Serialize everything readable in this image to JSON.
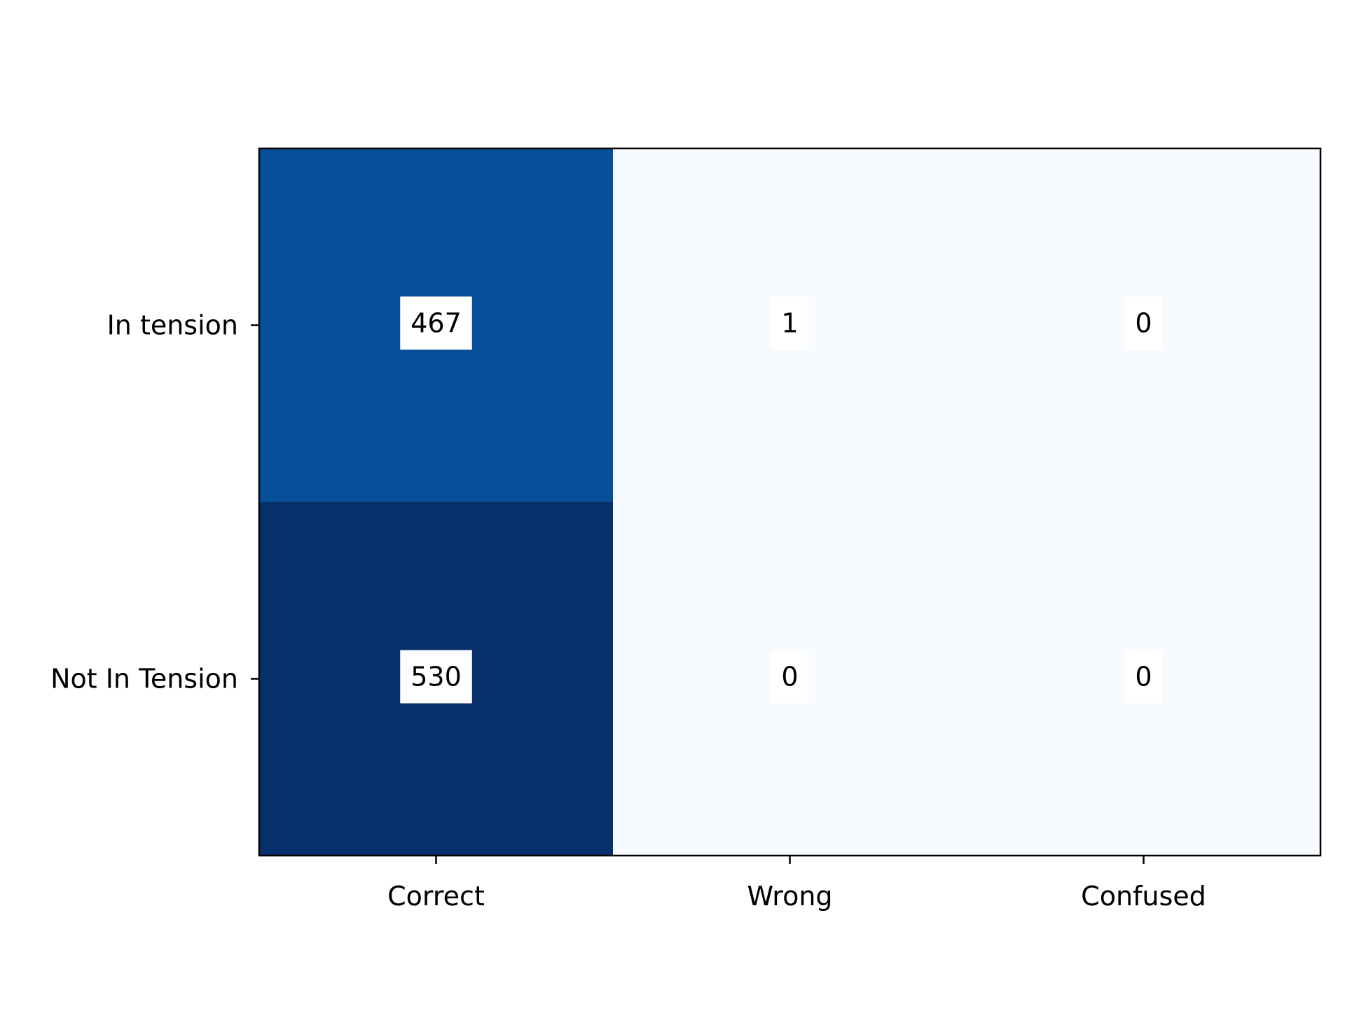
{
  "chart_data": {
    "type": "heatmap",
    "title": "",
    "xlabel": "",
    "ylabel": "",
    "x_categories": [
      "Correct",
      "Wrong",
      "Confused"
    ],
    "y_categories": [
      "In tension",
      "Not In Tension"
    ],
    "values": [
      [
        467,
        1,
        0
      ],
      [
        530,
        0,
        0
      ]
    ],
    "colormap": "Blues",
    "value_range": [
      0,
      530
    ],
    "grid": false,
    "legend": "none",
    "cell_label_background": "#ffffff",
    "colors": {
      "low": "#f7fbff",
      "mid": "#08519c",
      "high": "#08306b",
      "axis": "#000000"
    }
  }
}
